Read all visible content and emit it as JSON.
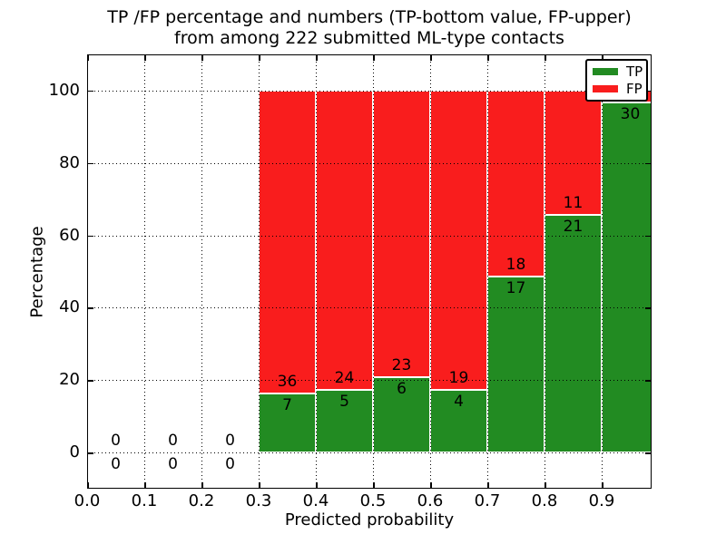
{
  "figure": {
    "title_line1": "TP /FP percentage and numbers (TP-bottom value, FP-upper)",
    "title_line2": "from among 222 submitted ML-type contacts"
  },
  "chart_data": {
    "type": "bar",
    "stacked": true,
    "normalized": "each non-empty bin stacks TP (bottom, green) + FP (top, red) to 100%",
    "title": "TP /FP percentage and numbers (TP-bottom value, FP-upper)\nfrom among 222 submitted ML-type contacts",
    "xlabel": "Predicted probability",
    "ylabel": "Percentage",
    "total_contacts": 222,
    "xlim": [
      0.0,
      0.9873
    ],
    "ylim": [
      -10,
      110
    ],
    "x_tick_values": [
      0.0,
      0.1,
      0.2,
      0.3,
      0.4,
      0.5,
      0.6,
      0.7,
      0.8,
      0.9
    ],
    "x_tick_labels": [
      "0.0",
      "0.1",
      "0.2",
      "0.3",
      "0.4",
      "0.5",
      "0.6",
      "0.7",
      "0.8",
      "0.9"
    ],
    "y_ticks": [
      0,
      20,
      40,
      60,
      80,
      100
    ],
    "grid": true,
    "bar_width": 0.1,
    "bins": [
      {
        "x0": 0.0,
        "x1": 0.1,
        "tp": 0,
        "fp": 0
      },
      {
        "x0": 0.1,
        "x1": 0.2,
        "tp": 0,
        "fp": 0
      },
      {
        "x0": 0.2,
        "x1": 0.3,
        "tp": 0,
        "fp": 0
      },
      {
        "x0": 0.3,
        "x1": 0.4,
        "tp": 7,
        "fp": 36
      },
      {
        "x0": 0.4,
        "x1": 0.5,
        "tp": 5,
        "fp": 24
      },
      {
        "x0": 0.5,
        "x1": 0.6,
        "tp": 6,
        "fp": 23
      },
      {
        "x0": 0.6,
        "x1": 0.7,
        "tp": 4,
        "fp": 19
      },
      {
        "x0": 0.7,
        "x1": 0.8,
        "tp": 17,
        "fp": 18
      },
      {
        "x0": 0.8,
        "x1": 0.9,
        "tp": 21,
        "fp": 11
      },
      {
        "x0": 0.9,
        "x1": 1.0,
        "tp": 30,
        "fp": 1,
        "fp_label_hidden_behind_legend": true
      }
    ],
    "legend": {
      "position": "upper right",
      "entries": [
        {
          "label": "TP",
          "color": "#228b22"
        },
        {
          "label": "FP",
          "color": "#f91d1d"
        }
      ]
    },
    "colors": {
      "tp": "#228b22",
      "fp": "#f91d1d",
      "bar_edge": "#ffffff"
    }
  }
}
